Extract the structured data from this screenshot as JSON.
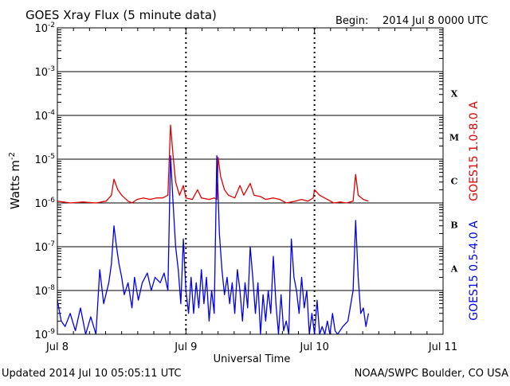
{
  "header": {
    "title": "GOES Xray Flux (5 minute data)",
    "begin_label": "Begin:",
    "begin_value": "2014 Jul 8 0000 UTC"
  },
  "footer": {
    "updated": "Updated 2014 Jul 10 05:05:11 UTC",
    "credit": "NOAA/SWPC Boulder, CO USA"
  },
  "colors": {
    "long_channel": "#e00000",
    "short_channel": "#0000ee",
    "axis": "#000000"
  },
  "chart_data": {
    "type": "line",
    "title": "GOES Xray Flux (5 minute data)",
    "xlabel": "Universal Time",
    "ylabel": "Watts m",
    "ylabel_superscript": "-2",
    "y_scale": "log",
    "ylim": [
      1e-09,
      0.01
    ],
    "xlim_days": [
      0,
      3
    ],
    "grid": true,
    "y_ticks": [
      {
        "base": "10",
        "exp": "-9"
      },
      {
        "base": "10",
        "exp": "-8"
      },
      {
        "base": "10",
        "exp": "-7"
      },
      {
        "base": "10",
        "exp": "-6"
      },
      {
        "base": "10",
        "exp": "-5"
      },
      {
        "base": "10",
        "exp": "-4"
      },
      {
        "base": "10",
        "exp": "-3"
      },
      {
        "base": "10",
        "exp": "-2"
      }
    ],
    "x_tick_labels": [
      "Jul 8",
      "Jul 9",
      "Jul 10",
      "Jul 11"
    ],
    "flare_classes": [
      {
        "label": "A",
        "exp": -8
      },
      {
        "label": "B",
        "exp": -7
      },
      {
        "label": "C",
        "exp": -6
      },
      {
        "label": "M",
        "exp": -5
      },
      {
        "label": "X",
        "exp": -4
      }
    ],
    "series": [
      {
        "name": "GOES15 1.0-8.0 A",
        "color": "#e00000",
        "points": [
          [
            0.0,
            1.1e-06
          ],
          [
            0.1,
            1e-06
          ],
          [
            0.2,
            1.05e-06
          ],
          [
            0.3,
            1e-06
          ],
          [
            0.38,
            1.1e-06
          ],
          [
            0.42,
            1.5e-06
          ],
          [
            0.44,
            3.5e-06
          ],
          [
            0.47,
            2e-06
          ],
          [
            0.5,
            1.5e-06
          ],
          [
            0.55,
            1.1e-06
          ],
          [
            0.58,
            1e-06
          ],
          [
            0.62,
            1.2e-06
          ],
          [
            0.67,
            1.3e-06
          ],
          [
            0.72,
            1.2e-06
          ],
          [
            0.77,
            1.3e-06
          ],
          [
            0.82,
            1.3e-06
          ],
          [
            0.86,
            1.5e-06
          ],
          [
            0.88,
            6e-05
          ],
          [
            0.9,
            1.2e-05
          ],
          [
            0.92,
            3e-06
          ],
          [
            0.95,
            1.5e-06
          ],
          [
            0.98,
            2.5e-06
          ],
          [
            1.0,
            1.3e-06
          ],
          [
            1.05,
            1.2e-06
          ],
          [
            1.09,
            2e-06
          ],
          [
            1.12,
            1.3e-06
          ],
          [
            1.18,
            1.2e-06
          ],
          [
            1.22,
            1.3e-06
          ],
          [
            1.24,
            1.2e-06
          ],
          [
            1.25,
            1.1e-05
          ],
          [
            1.27,
            4e-06
          ],
          [
            1.3,
            2e-06
          ],
          [
            1.33,
            1.5e-06
          ],
          [
            1.38,
            1.3e-06
          ],
          [
            1.42,
            2.5e-06
          ],
          [
            1.45,
            1.5e-06
          ],
          [
            1.5,
            2.8e-06
          ],
          [
            1.53,
            1.5e-06
          ],
          [
            1.58,
            1.4e-06
          ],
          [
            1.62,
            1.2e-06
          ],
          [
            1.68,
            1.3e-06
          ],
          [
            1.73,
            1.2e-06
          ],
          [
            1.78,
            1e-06
          ],
          [
            1.85,
            1.1e-06
          ],
          [
            1.9,
            1.2e-06
          ],
          [
            1.95,
            1.1e-06
          ],
          [
            1.99,
            1.3e-06
          ],
          [
            2.0,
            2e-06
          ],
          [
            2.04,
            1.5e-06
          ],
          [
            2.1,
            1.2e-06
          ],
          [
            2.15,
            1e-06
          ],
          [
            2.2,
            1.05e-06
          ],
          [
            2.25,
            1e-06
          ],
          [
            2.3,
            1.1e-06
          ],
          [
            2.32,
            4.5e-06
          ],
          [
            2.34,
            1.5e-06
          ],
          [
            2.38,
            1.2e-06
          ],
          [
            2.42,
            1.1e-06
          ]
        ]
      },
      {
        "name": "GOES15 0.5-4.0 A",
        "color": "#0000ee",
        "points": [
          [
            0.0,
            6e-09
          ],
          [
            0.03,
            2e-09
          ],
          [
            0.06,
            1.5e-09
          ],
          [
            0.1,
            3e-09
          ],
          [
            0.14,
            1.2e-09
          ],
          [
            0.18,
            4e-09
          ],
          [
            0.22,
            1e-09
          ],
          [
            0.26,
            2.5e-09
          ],
          [
            0.3,
            1e-09
          ],
          [
            0.33,
            3e-08
          ],
          [
            0.36,
            5e-09
          ],
          [
            0.4,
            1.5e-08
          ],
          [
            0.42,
            4e-08
          ],
          [
            0.44,
            3e-07
          ],
          [
            0.46,
            1e-07
          ],
          [
            0.48,
            4e-08
          ],
          [
            0.5,
            2e-08
          ],
          [
            0.52,
            8e-09
          ],
          [
            0.55,
            1.5e-08
          ],
          [
            0.58,
            4e-09
          ],
          [
            0.6,
            2e-08
          ],
          [
            0.63,
            6e-09
          ],
          [
            0.66,
            1.5e-08
          ],
          [
            0.7,
            2.5e-08
          ],
          [
            0.73,
            1e-08
          ],
          [
            0.76,
            2e-08
          ],
          [
            0.8,
            1.5e-08
          ],
          [
            0.83,
            2.5e-08
          ],
          [
            0.86,
            1e-08
          ],
          [
            0.88,
            1.2e-05
          ],
          [
            0.9,
            1e-06
          ],
          [
            0.92,
            1e-07
          ],
          [
            0.94,
            3e-08
          ],
          [
            0.96,
            5e-09
          ],
          [
            0.98,
            1.5e-07
          ],
          [
            1.0,
            1e-08
          ],
          [
            1.02,
            3e-09
          ],
          [
            1.04,
            2e-08
          ],
          [
            1.06,
            3e-09
          ],
          [
            1.08,
            1.5e-08
          ],
          [
            1.1,
            4e-09
          ],
          [
            1.12,
            3e-08
          ],
          [
            1.14,
            5e-09
          ],
          [
            1.16,
            2e-08
          ],
          [
            1.18,
            2e-09
          ],
          [
            1.2,
            1e-08
          ],
          [
            1.22,
            3e-09
          ],
          [
            1.24,
            1.2e-05
          ],
          [
            1.26,
            2e-07
          ],
          [
            1.28,
            3e-08
          ],
          [
            1.3,
            8e-09
          ],
          [
            1.32,
            2e-08
          ],
          [
            1.34,
            5e-09
          ],
          [
            1.36,
            1.5e-08
          ],
          [
            1.38,
            3e-09
          ],
          [
            1.4,
            3e-08
          ],
          [
            1.42,
            1e-08
          ],
          [
            1.44,
            2e-09
          ],
          [
            1.46,
            1.5e-08
          ],
          [
            1.48,
            4e-09
          ],
          [
            1.5,
            1e-07
          ],
          [
            1.52,
            2e-08
          ],
          [
            1.54,
            3e-09
          ],
          [
            1.56,
            1.5e-08
          ],
          [
            1.58,
            1e-09
          ],
          [
            1.6,
            8e-09
          ],
          [
            1.62,
            2e-09
          ],
          [
            1.64,
            1e-08
          ],
          [
            1.66,
            3e-09
          ],
          [
            1.68,
            6e-08
          ],
          [
            1.7,
            5e-09
          ],
          [
            1.72,
            1e-09
          ],
          [
            1.74,
            8e-09
          ],
          [
            1.76,
            1.2e-09
          ],
          [
            1.78,
            2e-09
          ],
          [
            1.8,
            1e-09
          ],
          [
            1.82,
            1.5e-07
          ],
          [
            1.84,
            2e-08
          ],
          [
            1.86,
            1e-08
          ],
          [
            1.88,
            3e-09
          ],
          [
            1.9,
            2e-08
          ],
          [
            1.92,
            4e-09
          ],
          [
            1.94,
            1e-08
          ],
          [
            1.96,
            1e-09
          ],
          [
            1.98,
            3e-09
          ],
          [
            2.0,
            1e-09
          ],
          [
            2.02,
            6e-09
          ],
          [
            2.04,
            1e-09
          ],
          [
            2.06,
            1.5e-09
          ],
          [
            2.08,
            1e-09
          ],
          [
            2.1,
            2e-09
          ],
          [
            2.12,
            1e-09
          ],
          [
            2.14,
            3e-09
          ],
          [
            2.16,
            1.2e-09
          ],
          [
            2.18,
            1e-09
          ],
          [
            2.22,
            1.5e-09
          ],
          [
            2.26,
            2e-09
          ],
          [
            2.3,
            1e-08
          ],
          [
            2.32,
            4e-07
          ],
          [
            2.34,
            2e-08
          ],
          [
            2.36,
            3e-09
          ],
          [
            2.38,
            4e-09
          ],
          [
            2.4,
            1.5e-09
          ],
          [
            2.42,
            3e-09
          ]
        ]
      }
    ]
  }
}
